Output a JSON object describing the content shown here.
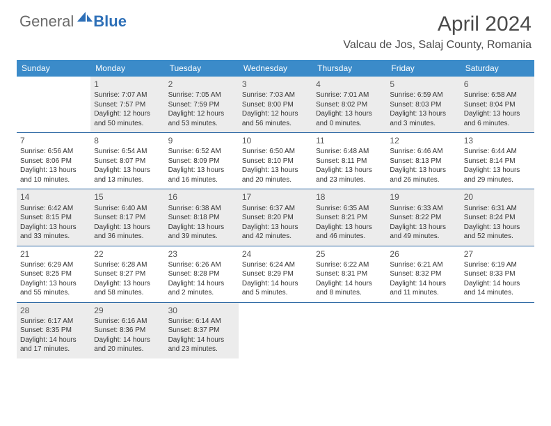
{
  "logo": {
    "general": "General",
    "blue": "Blue"
  },
  "header": {
    "title": "April 2024",
    "location": "Valcau de Jos, Salaj County, Romania"
  },
  "colors": {
    "header_bg": "#3b8bc9",
    "header_fg": "#ffffff",
    "shaded_bg": "#ececec",
    "border": "#2f6aa5",
    "logo_general": "#6a6a6a",
    "logo_blue": "#2d6fb7",
    "body_text": "#333333",
    "title_text": "#4a4a4a"
  },
  "weekdays": [
    "Sunday",
    "Monday",
    "Tuesday",
    "Wednesday",
    "Thursday",
    "Friday",
    "Saturday"
  ],
  "weeks": [
    [
      {
        "num": "",
        "shaded": false,
        "lines": []
      },
      {
        "num": "1",
        "shaded": true,
        "lines": [
          "Sunrise: 7:07 AM",
          "Sunset: 7:57 PM",
          "Daylight: 12 hours",
          "and 50 minutes."
        ]
      },
      {
        "num": "2",
        "shaded": true,
        "lines": [
          "Sunrise: 7:05 AM",
          "Sunset: 7:59 PM",
          "Daylight: 12 hours",
          "and 53 minutes."
        ]
      },
      {
        "num": "3",
        "shaded": true,
        "lines": [
          "Sunrise: 7:03 AM",
          "Sunset: 8:00 PM",
          "Daylight: 12 hours",
          "and 56 minutes."
        ]
      },
      {
        "num": "4",
        "shaded": true,
        "lines": [
          "Sunrise: 7:01 AM",
          "Sunset: 8:02 PM",
          "Daylight: 13 hours",
          "and 0 minutes."
        ]
      },
      {
        "num": "5",
        "shaded": true,
        "lines": [
          "Sunrise: 6:59 AM",
          "Sunset: 8:03 PM",
          "Daylight: 13 hours",
          "and 3 minutes."
        ]
      },
      {
        "num": "6",
        "shaded": true,
        "lines": [
          "Sunrise: 6:58 AM",
          "Sunset: 8:04 PM",
          "Daylight: 13 hours",
          "and 6 minutes."
        ]
      }
    ],
    [
      {
        "num": "7",
        "shaded": false,
        "lines": [
          "Sunrise: 6:56 AM",
          "Sunset: 8:06 PM",
          "Daylight: 13 hours",
          "and 10 minutes."
        ]
      },
      {
        "num": "8",
        "shaded": false,
        "lines": [
          "Sunrise: 6:54 AM",
          "Sunset: 8:07 PM",
          "Daylight: 13 hours",
          "and 13 minutes."
        ]
      },
      {
        "num": "9",
        "shaded": false,
        "lines": [
          "Sunrise: 6:52 AM",
          "Sunset: 8:09 PM",
          "Daylight: 13 hours",
          "and 16 minutes."
        ]
      },
      {
        "num": "10",
        "shaded": false,
        "lines": [
          "Sunrise: 6:50 AM",
          "Sunset: 8:10 PM",
          "Daylight: 13 hours",
          "and 20 minutes."
        ]
      },
      {
        "num": "11",
        "shaded": false,
        "lines": [
          "Sunrise: 6:48 AM",
          "Sunset: 8:11 PM",
          "Daylight: 13 hours",
          "and 23 minutes."
        ]
      },
      {
        "num": "12",
        "shaded": false,
        "lines": [
          "Sunrise: 6:46 AM",
          "Sunset: 8:13 PM",
          "Daylight: 13 hours",
          "and 26 minutes."
        ]
      },
      {
        "num": "13",
        "shaded": false,
        "lines": [
          "Sunrise: 6:44 AM",
          "Sunset: 8:14 PM",
          "Daylight: 13 hours",
          "and 29 minutes."
        ]
      }
    ],
    [
      {
        "num": "14",
        "shaded": true,
        "lines": [
          "Sunrise: 6:42 AM",
          "Sunset: 8:15 PM",
          "Daylight: 13 hours",
          "and 33 minutes."
        ]
      },
      {
        "num": "15",
        "shaded": true,
        "lines": [
          "Sunrise: 6:40 AM",
          "Sunset: 8:17 PM",
          "Daylight: 13 hours",
          "and 36 minutes."
        ]
      },
      {
        "num": "16",
        "shaded": true,
        "lines": [
          "Sunrise: 6:38 AM",
          "Sunset: 8:18 PM",
          "Daylight: 13 hours",
          "and 39 minutes."
        ]
      },
      {
        "num": "17",
        "shaded": true,
        "lines": [
          "Sunrise: 6:37 AM",
          "Sunset: 8:20 PM",
          "Daylight: 13 hours",
          "and 42 minutes."
        ]
      },
      {
        "num": "18",
        "shaded": true,
        "lines": [
          "Sunrise: 6:35 AM",
          "Sunset: 8:21 PM",
          "Daylight: 13 hours",
          "and 46 minutes."
        ]
      },
      {
        "num": "19",
        "shaded": true,
        "lines": [
          "Sunrise: 6:33 AM",
          "Sunset: 8:22 PM",
          "Daylight: 13 hours",
          "and 49 minutes."
        ]
      },
      {
        "num": "20",
        "shaded": true,
        "lines": [
          "Sunrise: 6:31 AM",
          "Sunset: 8:24 PM",
          "Daylight: 13 hours",
          "and 52 minutes."
        ]
      }
    ],
    [
      {
        "num": "21",
        "shaded": false,
        "lines": [
          "Sunrise: 6:29 AM",
          "Sunset: 8:25 PM",
          "Daylight: 13 hours",
          "and 55 minutes."
        ]
      },
      {
        "num": "22",
        "shaded": false,
        "lines": [
          "Sunrise: 6:28 AM",
          "Sunset: 8:27 PM",
          "Daylight: 13 hours",
          "and 58 minutes."
        ]
      },
      {
        "num": "23",
        "shaded": false,
        "lines": [
          "Sunrise: 6:26 AM",
          "Sunset: 8:28 PM",
          "Daylight: 14 hours",
          "and 2 minutes."
        ]
      },
      {
        "num": "24",
        "shaded": false,
        "lines": [
          "Sunrise: 6:24 AM",
          "Sunset: 8:29 PM",
          "Daylight: 14 hours",
          "and 5 minutes."
        ]
      },
      {
        "num": "25",
        "shaded": false,
        "lines": [
          "Sunrise: 6:22 AM",
          "Sunset: 8:31 PM",
          "Daylight: 14 hours",
          "and 8 minutes."
        ]
      },
      {
        "num": "26",
        "shaded": false,
        "lines": [
          "Sunrise: 6:21 AM",
          "Sunset: 8:32 PM",
          "Daylight: 14 hours",
          "and 11 minutes."
        ]
      },
      {
        "num": "27",
        "shaded": false,
        "lines": [
          "Sunrise: 6:19 AM",
          "Sunset: 8:33 PM",
          "Daylight: 14 hours",
          "and 14 minutes."
        ]
      }
    ],
    [
      {
        "num": "28",
        "shaded": true,
        "lines": [
          "Sunrise: 6:17 AM",
          "Sunset: 8:35 PM",
          "Daylight: 14 hours",
          "and 17 minutes."
        ]
      },
      {
        "num": "29",
        "shaded": true,
        "lines": [
          "Sunrise: 6:16 AM",
          "Sunset: 8:36 PM",
          "Daylight: 14 hours",
          "and 20 minutes."
        ]
      },
      {
        "num": "30",
        "shaded": true,
        "lines": [
          "Sunrise: 6:14 AM",
          "Sunset: 8:37 PM",
          "Daylight: 14 hours",
          "and 23 minutes."
        ]
      },
      {
        "num": "",
        "shaded": false,
        "lines": []
      },
      {
        "num": "",
        "shaded": false,
        "lines": []
      },
      {
        "num": "",
        "shaded": false,
        "lines": []
      },
      {
        "num": "",
        "shaded": false,
        "lines": []
      }
    ]
  ]
}
